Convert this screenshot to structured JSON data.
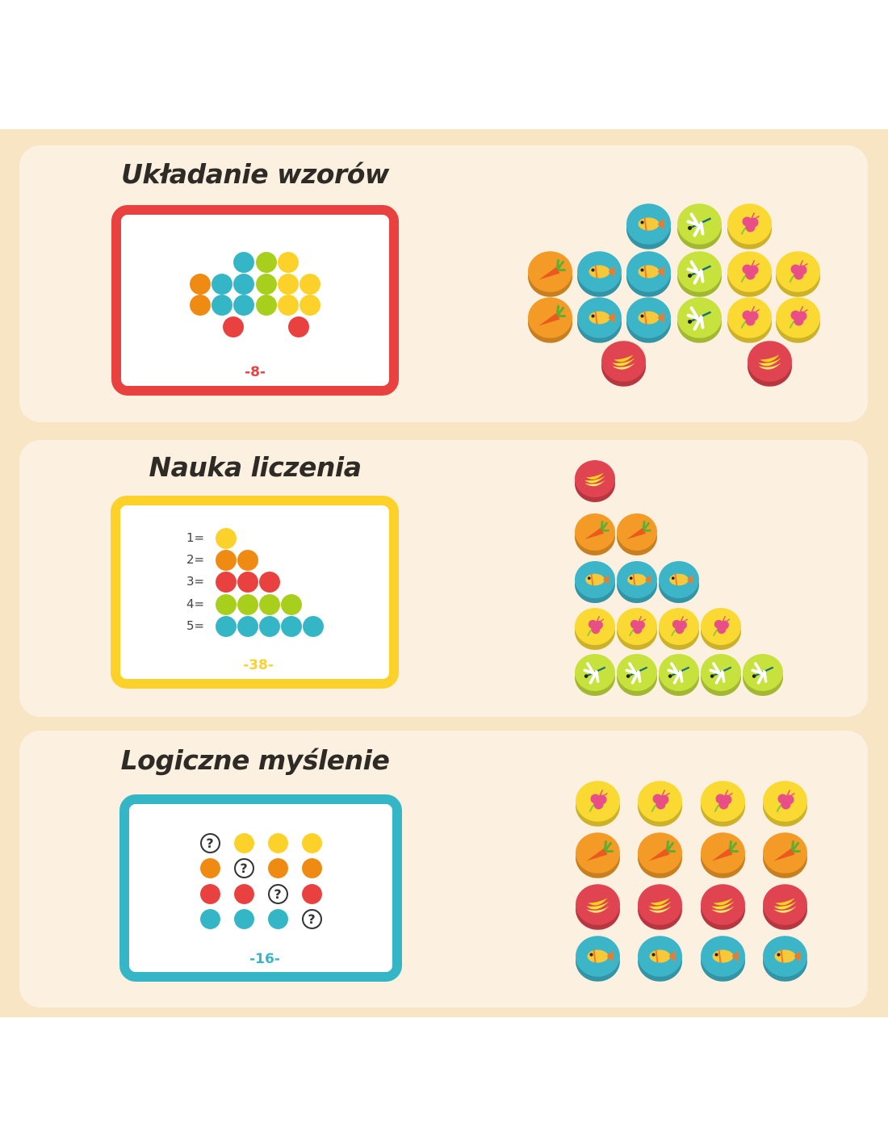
{
  "colors": {
    "red": "#e8413f",
    "yellow": "#fcd22a",
    "teal": "#35b6c6",
    "orange": "#ef8a12",
    "green": "#a8cf1c",
    "pink": "#e94f76"
  },
  "token_colors": {
    "fish": "#3db5c9",
    "dragonfly": "#c7e13d",
    "flower": "#f9d932",
    "carrot": "#f39b26",
    "banana": "#e04450"
  },
  "sections": [
    {
      "title": "Układanie wzorów",
      "card_number": "-8-",
      "card_color": "#e8413f",
      "pattern": [
        [
          null,
          null,
          "teal",
          "green",
          "yellow",
          null
        ],
        [
          "orange",
          "teal",
          "teal",
          "green",
          "yellow",
          "yellow"
        ],
        [
          "orange",
          "teal",
          "teal",
          "green",
          "yellow",
          "yellow"
        ],
        [
          null,
          "red",
          null,
          null,
          "red",
          null
        ]
      ],
      "tokens": [
        [
          null,
          null,
          "fish",
          "dragonfly",
          "flower",
          null
        ],
        [
          "carrot",
          "fish",
          "fish",
          "dragonfly",
          "flower",
          "flower"
        ],
        [
          "carrot",
          "fish",
          "fish",
          "dragonfly",
          "flower",
          "flower"
        ],
        [
          null,
          "banana",
          null,
          null,
          "banana",
          null
        ]
      ]
    },
    {
      "title": "Nauka liczenia",
      "card_number": "-38-",
      "card_color": "#fcd22a",
      "count_labels": [
        "1=",
        "2=",
        "3=",
        "4=",
        "5="
      ],
      "count_colors": [
        "yellow",
        "orange",
        "red",
        "green",
        "teal"
      ],
      "tokens": [
        [
          "banana"
        ],
        [
          "carrot",
          "carrot"
        ],
        [
          "fish",
          "fish",
          "fish"
        ],
        [
          "flower",
          "flower",
          "flower",
          "flower"
        ],
        [
          "dragonfly",
          "dragonfly",
          "dragonfly",
          "dragonfly",
          "dragonfly"
        ]
      ]
    },
    {
      "title": "Logiczne myślenie",
      "card_number": "-16-",
      "card_color": "#35b6c6",
      "question_mark": "?",
      "grid_colors": [
        "yellow",
        "orange",
        "red",
        "teal"
      ],
      "tokens": [
        [
          "flower",
          "flower",
          "flower",
          "flower"
        ],
        [
          "carrot",
          "carrot",
          "carrot",
          "carrot"
        ],
        [
          "banana",
          "banana",
          "banana",
          "banana"
        ],
        [
          "fish",
          "fish",
          "fish",
          "fish"
        ]
      ]
    }
  ]
}
